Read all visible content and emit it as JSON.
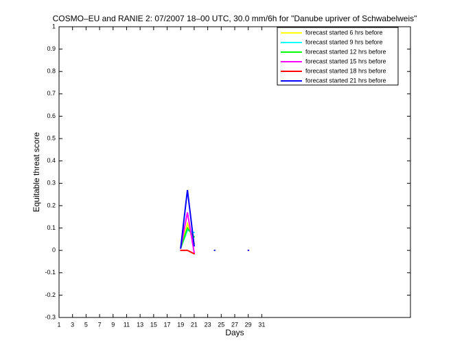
{
  "chart_data": {
    "type": "line",
    "title": "COSMO–EU and RANIE 2: 07/2007 18–00 UTC, 30.0 mm/6h for \"Danube upriver of Schwabelweis\"",
    "x_label": "Days",
    "y_label": "Equitable threat score",
    "x": [
      19,
      20,
      21,
      22,
      24,
      25,
      29
    ],
    "series": [
      {
        "name": "forecast started 6 hrs before",
        "color": "#ffff00",
        "values": [
          0.01,
          0.12,
          0.03,
          null,
          null,
          null,
          null
        ]
      },
      {
        "name": "forecast started 9 hrs before",
        "color": "#00ffff",
        "values": [
          0.01,
          0.09,
          0.08,
          null,
          null,
          null,
          null
        ]
      },
      {
        "name": "forecast started 12 hrs before",
        "color": "#00ff00",
        "values": [
          0.01,
          0.1,
          0.06,
          null,
          null,
          null,
          null
        ]
      },
      {
        "name": "forecast started 15 hrs before",
        "color": "#ff00ff",
        "values": [
          0.01,
          0.17,
          -0.01,
          null,
          null,
          null,
          null
        ]
      },
      {
        "name": "forecast started 18 hrs before",
        "color": "#ff0000",
        "values": [
          0,
          0,
          -0.015,
          null,
          null,
          null,
          0
        ]
      },
      {
        "name": "forecast started 21 hrs before",
        "color": "#0000ff",
        "values": [
          0.01,
          0.27,
          0.02,
          null,
          0,
          null,
          0
        ]
      }
    ],
    "xlim": [
      1,
      53
    ],
    "xticks": [
      1,
      3,
      5,
      7,
      9,
      11,
      13,
      15,
      17,
      19,
      21,
      23,
      25,
      27,
      29,
      31
    ],
    "ylim": [
      -0.3,
      1
    ],
    "yticks": [
      -0.3,
      -0.2,
      -0.1,
      0,
      0.1,
      0.2,
      0.3,
      0.4,
      0.5,
      0.6,
      0.7,
      0.8,
      0.9,
      1
    ],
    "legend_location": "northeast",
    "grid": false
  }
}
